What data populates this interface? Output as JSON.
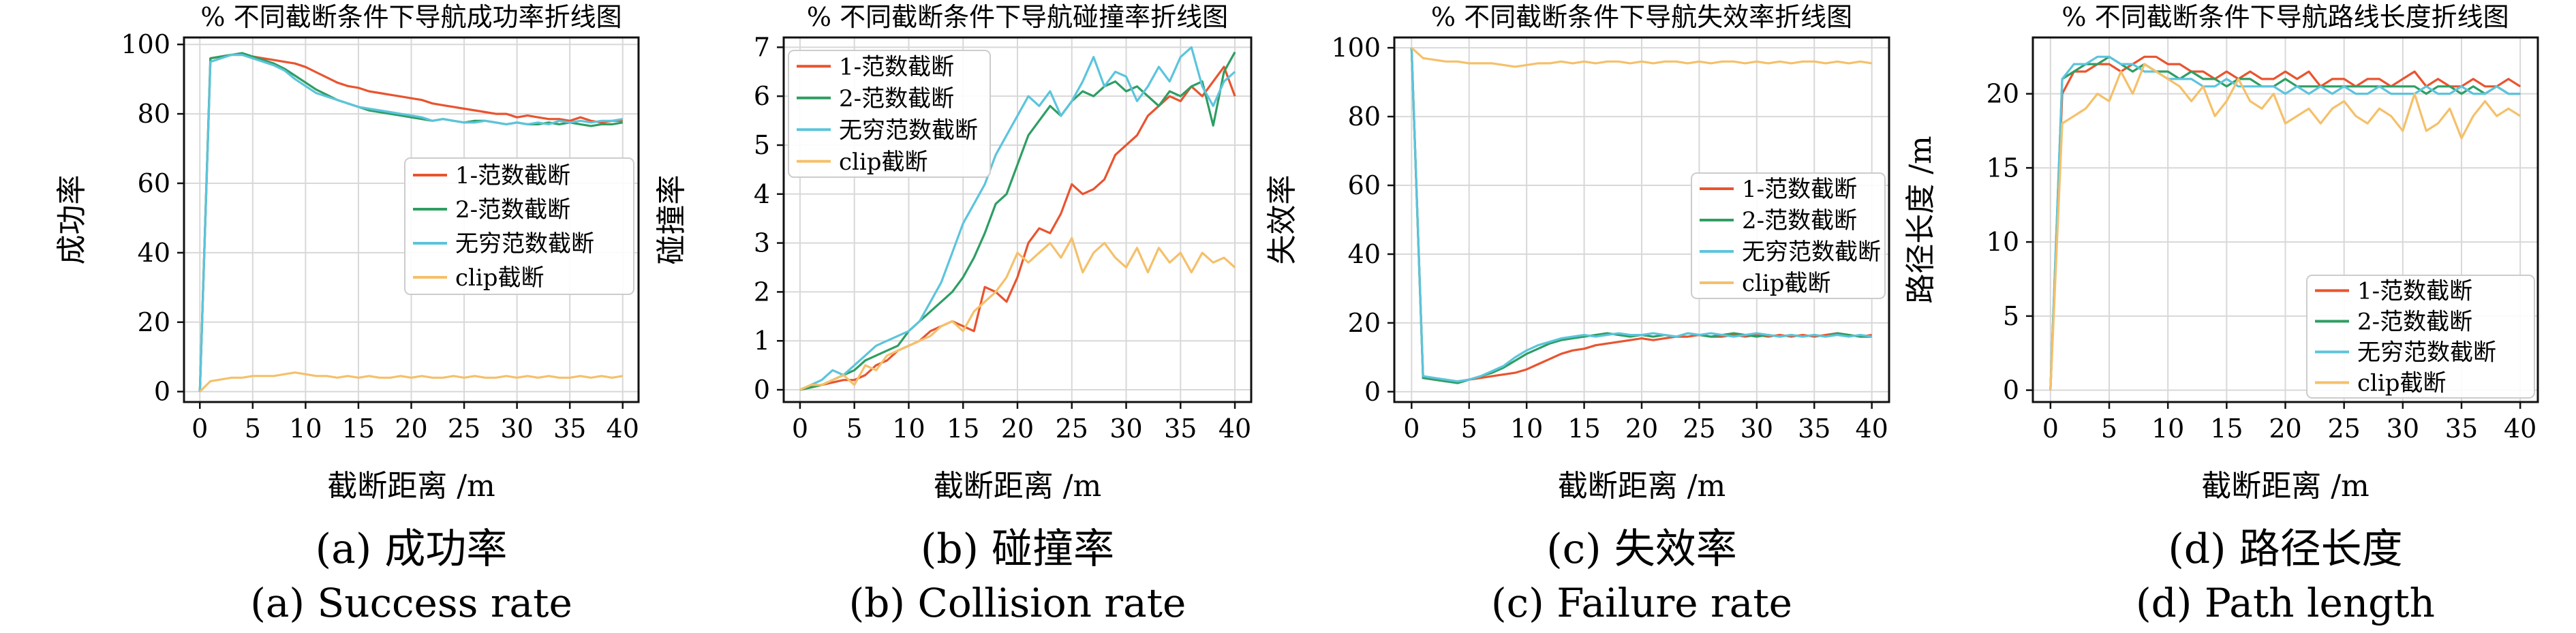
{
  "charts": [
    {
      "type": "line",
      "title": "% 不同截断条件下导航成功率折线图",
      "xlabel": "截断距离 /m",
      "ylabel": "成功率",
      "xlim": [
        -1.5,
        41.5
      ],
      "ylim": [
        -3,
        102
      ],
      "xticks": [
        0,
        5,
        10,
        15,
        20,
        25,
        30,
        35,
        40
      ],
      "yticks": [
        0,
        20,
        40,
        60,
        80,
        100
      ],
      "grid": true,
      "legend_position": "center-right",
      "caption_cn": "(a) 成功率",
      "caption_en": "(a) Success rate",
      "x": [
        0,
        1,
        2,
        3,
        4,
        5,
        6,
        7,
        8,
        9,
        10,
        11,
        12,
        13,
        14,
        15,
        16,
        17,
        18,
        19,
        20,
        21,
        22,
        23,
        24,
        25,
        26,
        27,
        28,
        29,
        30,
        31,
        32,
        33,
        34,
        35,
        36,
        37,
        38,
        39,
        40
      ],
      "series": [
        {
          "name": "1-范数截断",
          "color": "#e8542f",
          "values": [
            0,
            96,
            96.5,
            97,
            97,
            96.5,
            96,
            95.5,
            95,
            94.5,
            93.5,
            92,
            90.5,
            89,
            88,
            87.5,
            86.5,
            86,
            85.5,
            85,
            84.5,
            84,
            83,
            82.5,
            82,
            81.5,
            81,
            80.5,
            80,
            80,
            79,
            79.5,
            79,
            78.5,
            78.5,
            78,
            79,
            78,
            77.5,
            78,
            78
          ]
        },
        {
          "name": "2-范数截断",
          "color": "#2e9e63",
          "values": [
            0,
            96,
            96.5,
            97,
            97.5,
            96.5,
            95.5,
            94.5,
            93,
            91,
            89,
            87,
            85.5,
            84,
            83,
            82,
            81,
            80.5,
            80,
            79.5,
            79,
            78.5,
            78,
            78.5,
            78,
            77.5,
            78,
            78,
            77.5,
            77,
            77.5,
            77,
            77,
            77.5,
            77,
            77.5,
            77,
            76.5,
            77,
            77,
            77.5
          ]
        },
        {
          "name": "无穷范数截断",
          "color": "#5cc4dc",
          "values": [
            0,
            95,
            96,
            97,
            97,
            96,
            95,
            94,
            92.5,
            90,
            88,
            86,
            85,
            84,
            83,
            82,
            81.5,
            81,
            80.5,
            80,
            79.5,
            79,
            78,
            78.5,
            78,
            77.5,
            77.5,
            78,
            77.5,
            77,
            77.5,
            77,
            77.5,
            77,
            78,
            77.5,
            78,
            77.5,
            78,
            78,
            78.5
          ]
        },
        {
          "name": "clip截断",
          "color": "#f5c06a",
          "values": [
            0,
            3,
            3.5,
            4,
            4,
            4.5,
            4.5,
            4.5,
            5,
            5.5,
            5,
            4.5,
            4.5,
            4,
            4.5,
            4,
            4.5,
            4,
            4,
            4.5,
            4,
            4.5,
            4,
            4,
            4.5,
            4,
            4.5,
            4,
            4,
            4.5,
            4,
            4.5,
            4,
            4.5,
            4,
            4,
            4.5,
            4,
            4.5,
            4,
            4.5
          ]
        }
      ]
    },
    {
      "type": "line",
      "title": "% 不同截断条件下导航碰撞率折线图",
      "xlabel": "截断距离 /m",
      "ylabel": "碰撞率",
      "xlim": [
        -1.5,
        41.5
      ],
      "ylim": [
        -0.25,
        7.2
      ],
      "xticks": [
        0,
        5,
        10,
        15,
        20,
        25,
        30,
        35,
        40
      ],
      "yticks": [
        0,
        1,
        2,
        3,
        4,
        5,
        6,
        7
      ],
      "grid": true,
      "legend_position": "top-left",
      "caption_cn": "(b) 碰撞率",
      "caption_en": "(b) Collision rate",
      "x": [
        0,
        1,
        2,
        3,
        4,
        5,
        6,
        7,
        8,
        9,
        10,
        11,
        12,
        13,
        14,
        15,
        16,
        17,
        18,
        19,
        20,
        21,
        22,
        23,
        24,
        25,
        26,
        27,
        28,
        29,
        30,
        31,
        32,
        33,
        34,
        35,
        36,
        37,
        38,
        39,
        40
      ],
      "series": [
        {
          "name": "1-范数截断",
          "color": "#e8542f",
          "values": [
            0,
            0.05,
            0.1,
            0.15,
            0.2,
            0.2,
            0.3,
            0.5,
            0.6,
            0.8,
            0.9,
            1.0,
            1.2,
            1.3,
            1.4,
            1.3,
            1.2,
            2.1,
            2.0,
            1.8,
            2.3,
            3.0,
            3.3,
            3.2,
            3.6,
            4.2,
            4.0,
            4.1,
            4.3,
            4.8,
            5.0,
            5.2,
            5.6,
            5.8,
            6.0,
            5.9,
            6.2,
            6.0,
            6.3,
            6.6,
            6.0
          ]
        },
        {
          "name": "2-范数截断",
          "color": "#2e9e63",
          "values": [
            0,
            0.05,
            0.1,
            0.2,
            0.3,
            0.4,
            0.6,
            0.7,
            0.8,
            0.9,
            1.2,
            1.4,
            1.6,
            1.8,
            2.0,
            2.3,
            2.7,
            3.2,
            3.8,
            4.0,
            4.6,
            5.2,
            5.5,
            5.8,
            5.6,
            5.9,
            6.1,
            6.0,
            6.2,
            6.3,
            6.1,
            6.2,
            6.0,
            5.8,
            6.1,
            6.0,
            6.2,
            6.3,
            5.4,
            6.5,
            6.9
          ]
        },
        {
          "name": "无穷范数截断",
          "color": "#5cc4dc",
          "values": [
            0,
            0.1,
            0.2,
            0.4,
            0.3,
            0.5,
            0.7,
            0.9,
            1.0,
            1.1,
            1.2,
            1.4,
            1.8,
            2.2,
            2.8,
            3.4,
            3.8,
            4.2,
            4.8,
            5.2,
            5.6,
            6.0,
            5.8,
            6.1,
            5.6,
            5.9,
            6.3,
            6.8,
            6.2,
            6.5,
            6.4,
            5.9,
            6.2,
            6.6,
            6.3,
            6.8,
            7.0,
            6.2,
            5.8,
            6.3,
            6.5
          ]
        },
        {
          "name": "clip截断",
          "color": "#f5c06a",
          "values": [
            0,
            0.1,
            0.1,
            0.2,
            0.3,
            0.1,
            0.5,
            0.4,
            0.7,
            0.8,
            0.9,
            1.0,
            1.1,
            1.3,
            1.4,
            1.2,
            1.6,
            1.8,
            2.0,
            2.3,
            2.8,
            2.6,
            2.8,
            3.0,
            2.7,
            3.1,
            2.4,
            2.8,
            3.0,
            2.7,
            2.5,
            2.9,
            2.4,
            2.9,
            2.6,
            2.8,
            2.4,
            2.8,
            2.6,
            2.7,
            2.5
          ]
        }
      ]
    },
    {
      "type": "line",
      "title": "% 不同截断条件下导航失效率折线图",
      "xlabel": "截断距离 /m",
      "ylabel": "失效率",
      "xlim": [
        -1.5,
        41.5
      ],
      "ylim": [
        -3,
        103
      ],
      "xticks": [
        0,
        5,
        10,
        15,
        20,
        25,
        30,
        35,
        40
      ],
      "yticks": [
        0,
        20,
        40,
        60,
        80,
        100
      ],
      "grid": true,
      "legend_position": "center-right",
      "caption_cn": "(c) 失效率",
      "caption_en": "(c) Failure rate",
      "x": [
        0,
        1,
        2,
        3,
        4,
        5,
        6,
        7,
        8,
        9,
        10,
        11,
        12,
        13,
        14,
        15,
        16,
        17,
        18,
        19,
        20,
        21,
        22,
        23,
        24,
        25,
        26,
        27,
        28,
        29,
        30,
        31,
        32,
        33,
        34,
        35,
        36,
        37,
        38,
        39,
        40
      ],
      "series": [
        {
          "name": "1-范数截断",
          "color": "#e8542f",
          "values": [
            100,
            4,
            3.5,
            3,
            3,
            3.5,
            4,
            4.5,
            5,
            5.5,
            6.5,
            8,
            9.5,
            11,
            12,
            12.5,
            13.5,
            14,
            14.5,
            15,
            15.5,
            15,
            15.5,
            16,
            16,
            16.5,
            16,
            16,
            16.5,
            16,
            16.5,
            16,
            16.5,
            16,
            16.5,
            16,
            16.5,
            17,
            16.5,
            16,
            16.5
          ]
        },
        {
          "name": "2-范数截断",
          "color": "#2e9e63",
          "values": [
            100,
            4,
            3.5,
            3,
            2.5,
            3.5,
            4.5,
            5.5,
            7,
            9,
            11,
            12.5,
            14,
            15,
            15.5,
            16,
            16.5,
            17,
            16.5,
            16,
            16.5,
            16,
            16.5,
            16,
            17,
            16.5,
            16,
            16.5,
            17,
            16.5,
            16,
            16.5,
            16,
            16.5,
            16,
            16.5,
            16,
            17,
            16.5,
            16,
            16
          ]
        },
        {
          "name": "无穷范数截断",
          "color": "#5cc4dc",
          "values": [
            100,
            4.5,
            4,
            3.5,
            3,
            3.5,
            4.5,
            6,
            7.5,
            10,
            12,
            13.5,
            14.5,
            15.5,
            16,
            16.5,
            16,
            16.5,
            17,
            16.5,
            16.5,
            17,
            16.5,
            16,
            17,
            16.5,
            17,
            16.5,
            16,
            16.5,
            17,
            16.5,
            16,
            16.5,
            16,
            16.5,
            16,
            16.5,
            16,
            16.5,
            16
          ]
        },
        {
          "name": "clip截断",
          "color": "#f5c06a",
          "values": [
            100,
            97,
            96.5,
            96,
            96,
            95.5,
            95.5,
            95.5,
            95,
            94.5,
            95,
            95.5,
            95.5,
            96,
            95.5,
            96,
            95.5,
            96,
            96,
            95.5,
            96,
            95.5,
            96,
            96,
            95.5,
            96,
            95.5,
            96,
            96,
            95.5,
            96,
            95.5,
            96,
            95.5,
            96,
            96,
            95.5,
            96,
            95.5,
            96,
            95.5
          ]
        }
      ]
    },
    {
      "type": "line",
      "title": "% 不同截断条件下导航路线长度折线图",
      "xlabel": "截断距离 /m",
      "ylabel": "路径长度 /m",
      "xlim": [
        -1.5,
        41.5
      ],
      "ylim": [
        -0.8,
        23.8
      ],
      "xticks": [
        0,
        5,
        10,
        15,
        20,
        25,
        30,
        35,
        40
      ],
      "yticks": [
        0,
        5,
        10,
        15,
        20
      ],
      "grid": true,
      "legend_position": "bottom-right",
      "caption_cn": "(d) 路径长度",
      "caption_en": "(d) Path length",
      "x": [
        0,
        1,
        2,
        3,
        4,
        5,
        6,
        7,
        8,
        9,
        10,
        11,
        12,
        13,
        14,
        15,
        16,
        17,
        18,
        19,
        20,
        21,
        22,
        23,
        24,
        25,
        26,
        27,
        28,
        29,
        30,
        31,
        32,
        33,
        34,
        35,
        36,
        37,
        38,
        39,
        40
      ],
      "series": [
        {
          "name": "1-范数截断",
          "color": "#e8542f",
          "values": [
            0,
            20,
            21.5,
            21.5,
            22,
            22,
            21.5,
            22,
            22.5,
            22.5,
            22,
            22,
            21.5,
            21.5,
            21,
            21.5,
            21,
            21.5,
            21,
            21,
            21.5,
            21,
            21.5,
            20.5,
            21,
            21,
            20.5,
            21,
            21,
            20.5,
            21,
            21.5,
            20.5,
            21,
            20.5,
            20.5,
            21,
            20.5,
            20.5,
            21,
            20.5
          ]
        },
        {
          "name": "2-范数截断",
          "color": "#2e9e63",
          "values": [
            0,
            21,
            21.5,
            22,
            22,
            22.5,
            22,
            21.5,
            22,
            21.5,
            21.5,
            21,
            21.5,
            21,
            21,
            20.5,
            21,
            21,
            20.5,
            20.5,
            21,
            20.5,
            20.5,
            20.5,
            20.5,
            20.5,
            20.5,
            20.5,
            20.5,
            20.5,
            20.5,
            20.5,
            20,
            20.5,
            20.5,
            20,
            20.5,
            20,
            20.5,
            20,
            20
          ]
        },
        {
          "name": "无穷范数截断",
          "color": "#5cc4dc",
          "values": [
            0,
            21,
            22,
            22,
            22.5,
            22.5,
            22,
            22,
            21.5,
            21.5,
            21,
            21,
            21,
            20.5,
            20.5,
            21,
            20.5,
            20.5,
            20.5,
            20.5,
            20,
            20.5,
            20,
            20.5,
            20,
            20.5,
            20,
            20,
            20.5,
            20,
            20,
            20,
            20.5,
            20,
            20,
            20.5,
            20,
            20,
            20.5,
            20,
            20
          ]
        },
        {
          "name": "clip截断",
          "color": "#f5c06a",
          "values": [
            0,
            18,
            18.5,
            19,
            20,
            19.5,
            21.5,
            20,
            22,
            21.5,
            21,
            20.5,
            19.5,
            20.5,
            18.5,
            19.5,
            21,
            19.5,
            19,
            20,
            18,
            18.5,
            19,
            18,
            19,
            19.5,
            18.5,
            18,
            19,
            18.5,
            17.5,
            20,
            17.5,
            18,
            19,
            17,
            18.5,
            19.5,
            18.5,
            19,
            18.5
          ]
        }
      ]
    }
  ]
}
